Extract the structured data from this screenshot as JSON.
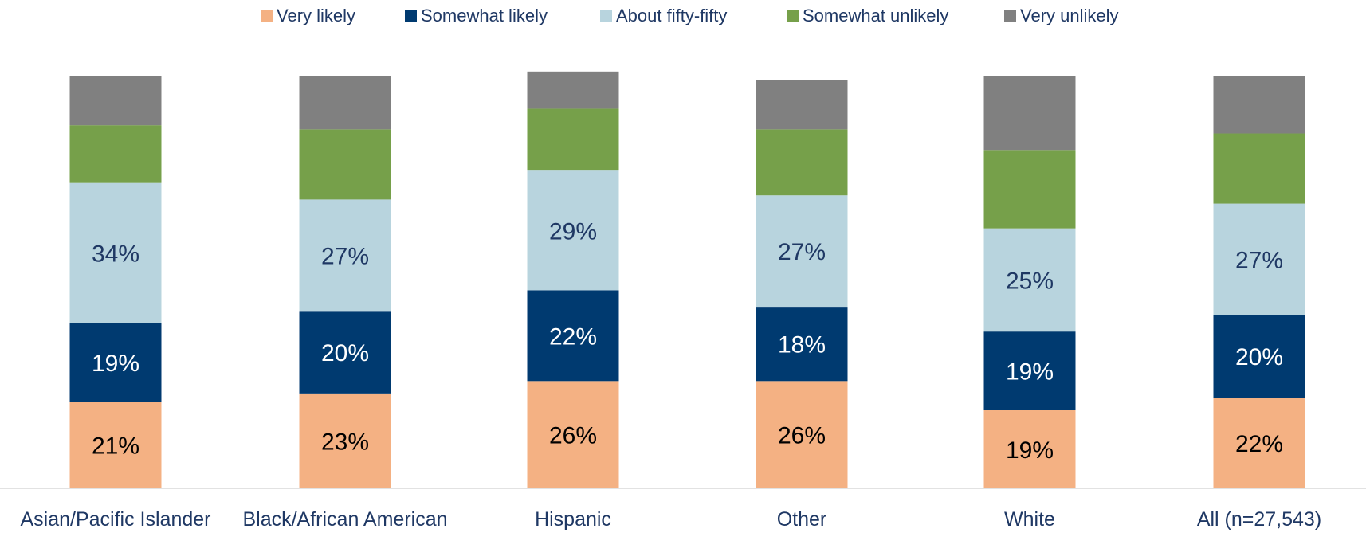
{
  "chart_data": {
    "type": "bar",
    "stacked": true,
    "normalized_100": true,
    "categories": [
      "Asian/Pacific Islander",
      "Black/African American",
      "Hispanic",
      "Other",
      "White",
      "All (n=27,543)"
    ],
    "series": [
      {
        "name": "Very likely",
        "color": "#f4b183",
        "values": [
          21,
          23,
          26,
          26,
          19,
          22
        ],
        "labels": [
          "21%",
          "23%",
          "26%",
          "26%",
          "19%",
          "22%"
        ]
      },
      {
        "name": "Somewhat likely",
        "color": "#003a70",
        "values": [
          19,
          20,
          22,
          18,
          19,
          20
        ],
        "labels": [
          "19%",
          "20%",
          "22%",
          "18%",
          "19%",
          "20%"
        ]
      },
      {
        "name": "About fifty-fifty",
        "color": "#b8d4de",
        "values": [
          34,
          27,
          29,
          27,
          25,
          27
        ],
        "labels": [
          "34%",
          "27%",
          "29%",
          "27%",
          "25%",
          "27%"
        ]
      },
      {
        "name": "Somewhat unlikely",
        "color": "#76a04a",
        "values": [
          14,
          17,
          15,
          16,
          19,
          17
        ],
        "labels": [
          "",
          "",
          "",
          "",
          "",
          ""
        ]
      },
      {
        "name": "Very unlikely",
        "color": "#808080",
        "values": [
          12,
          13,
          9,
          12,
          18,
          14
        ],
        "labels": [
          "",
          "",
          "",
          "",
          "",
          ""
        ]
      }
    ],
    "label_colors": {
      "Very likely": "#000000",
      "Somewhat likely": "#ffffff",
      "About fifty-fifty": "#1f3864"
    },
    "legend_position": "top",
    "grid": false,
    "ylim": [
      0,
      100
    ]
  }
}
